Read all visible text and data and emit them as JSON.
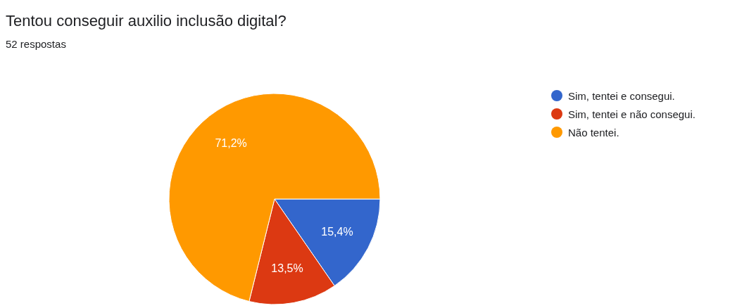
{
  "chart_data": {
    "type": "pie",
    "title": "Tentou conseguir auxilio inclusão digital?",
    "subtitle": "52 respostas",
    "categories": [
      "Sim, tentei e consegui.",
      "Sim, tentei e não consegui.",
      "Não tentei."
    ],
    "values": [
      15.4,
      13.5,
      71.2
    ],
    "colors": [
      "#3366cc",
      "#dc3912",
      "#ff9900"
    ],
    "value_labels": [
      "15,4%",
      "13,5%",
      "71,2%"
    ],
    "legend": "right"
  }
}
